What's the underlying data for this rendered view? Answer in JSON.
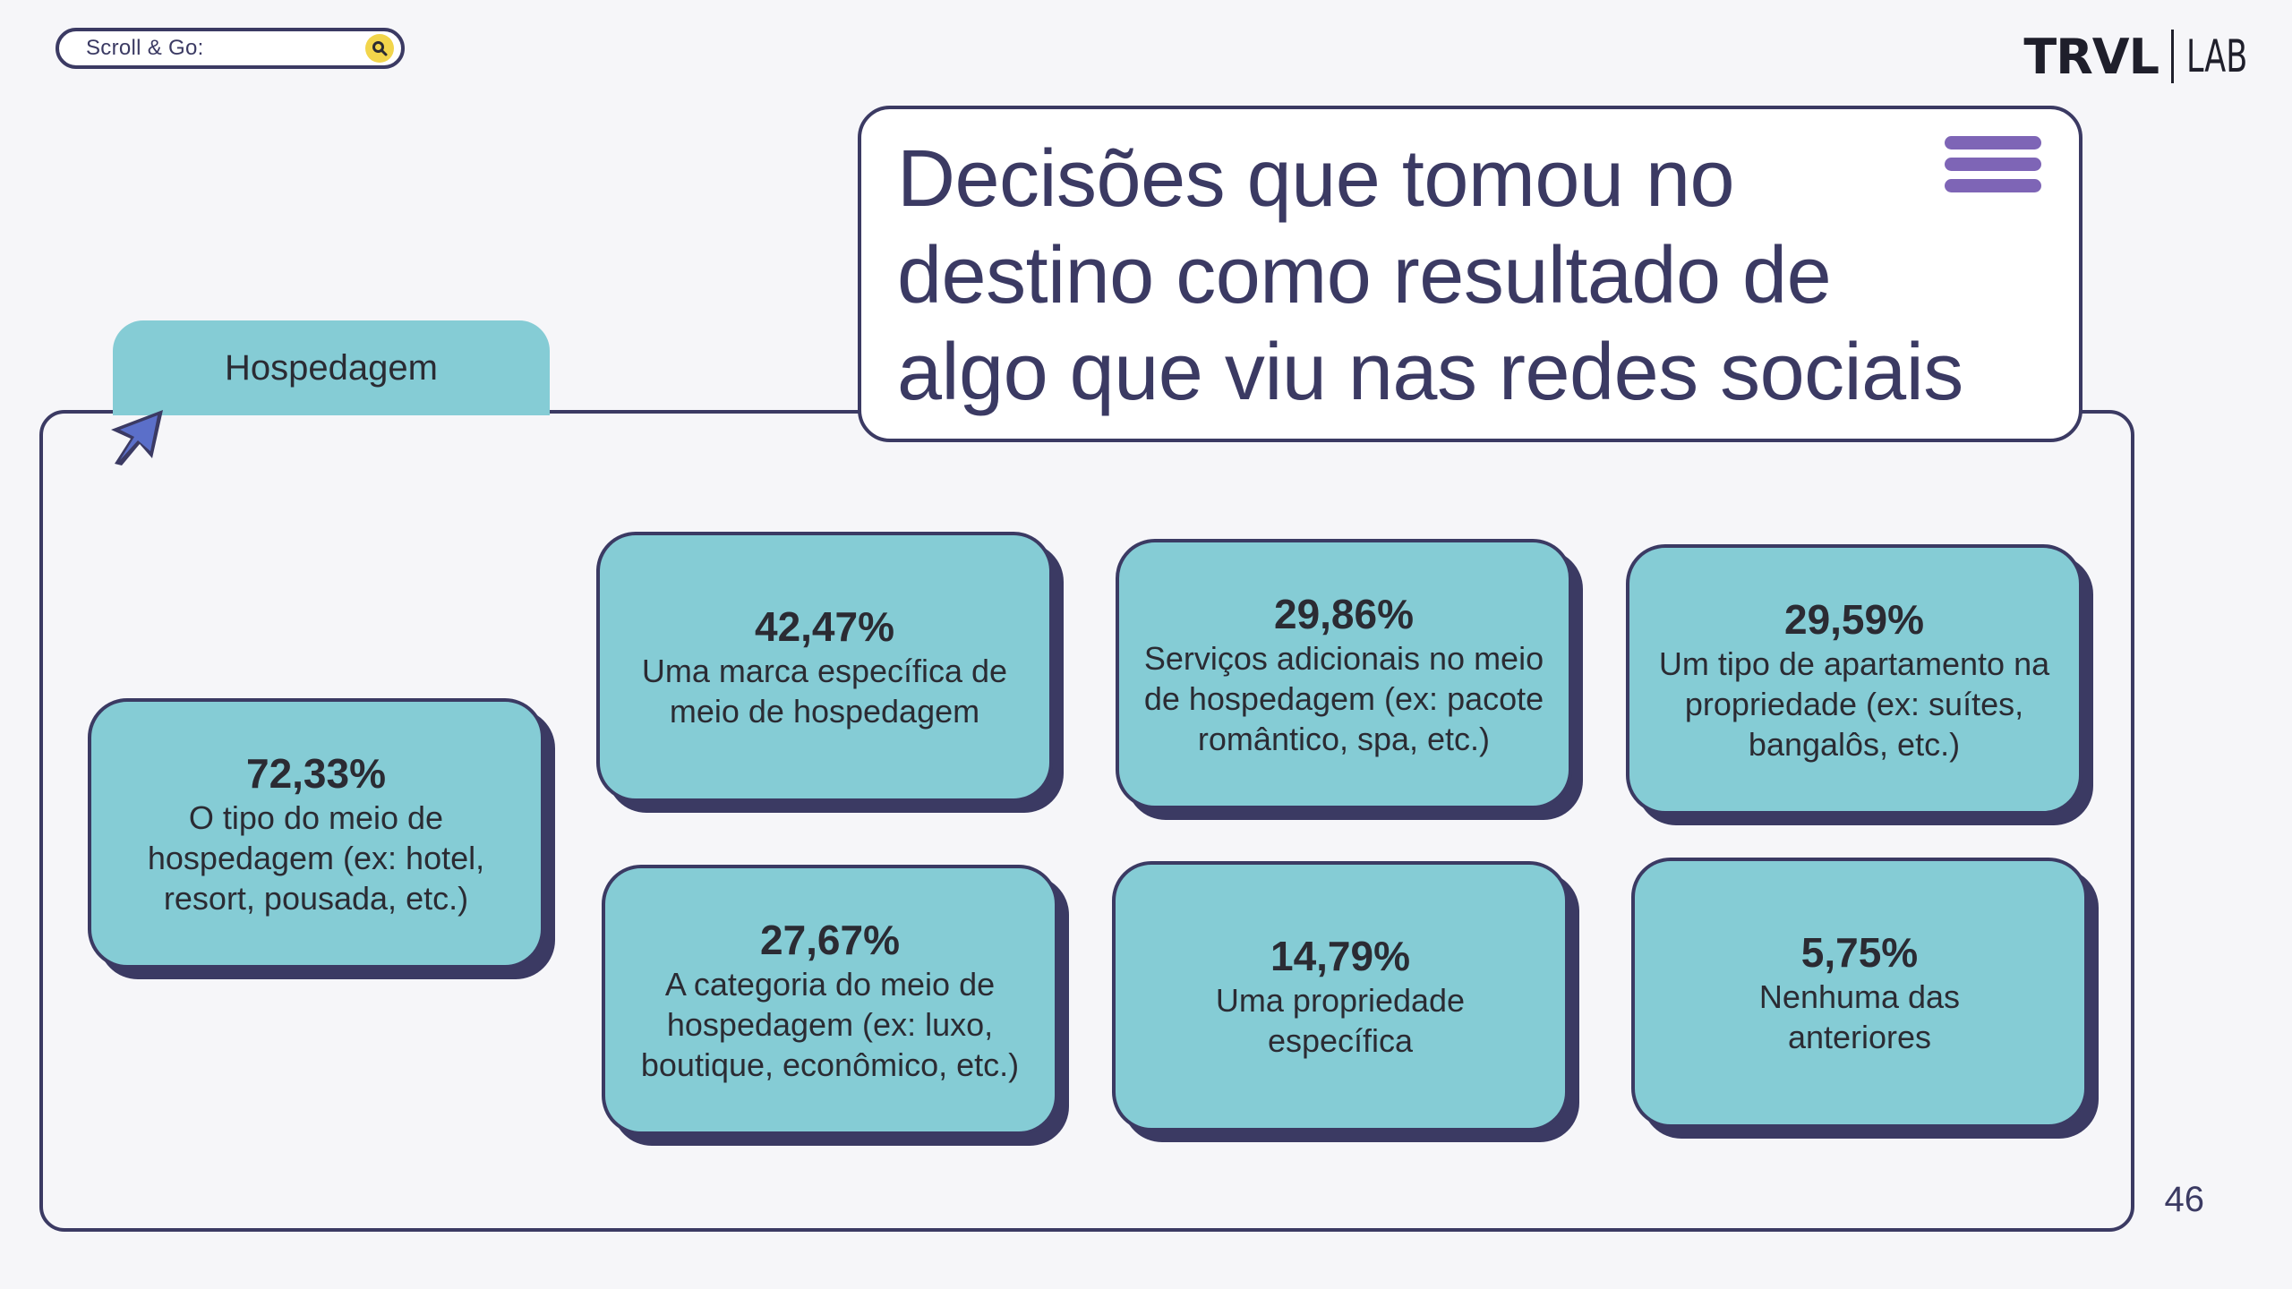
{
  "search": {
    "placeholder": "Scroll & Go:",
    "icon": "search-icon"
  },
  "logo": {
    "main": "TRVL",
    "secondary": "LAB"
  },
  "title": "Decisões que tomou no destino como resultado de algo que viu nas redes sociais",
  "tab": {
    "label": "Hospedagem"
  },
  "cards": [
    {
      "value": "72,33%",
      "text": "O tipo do meio de hospedagem (ex: hotel, resort, pousada, etc.)"
    },
    {
      "value": "42,47%",
      "text": "Uma marca específica de meio de hospedagem"
    },
    {
      "value": "29,86%",
      "text": "Serviços adicionais no meio de hospedagem (ex: pacote romântico, spa, etc.)"
    },
    {
      "value": "29,59%",
      "text": "Um tipo de apartamento na propriedade (ex: suítes, bangalôs, etc.)"
    },
    {
      "value": "27,67%",
      "text": "A categoria do meio de hospedagem (ex: luxo, boutique, econômico, etc.)"
    },
    {
      "value": "14,79%",
      "text": "Uma propriedade específica"
    },
    {
      "value": "5,75%",
      "text": "Nenhuma das anteriores"
    }
  ],
  "page_number": "46",
  "colors": {
    "navy": "#3b3a63",
    "teal": "#85ccd5",
    "purple": "#7e65b6",
    "yellow": "#f2d54b"
  }
}
